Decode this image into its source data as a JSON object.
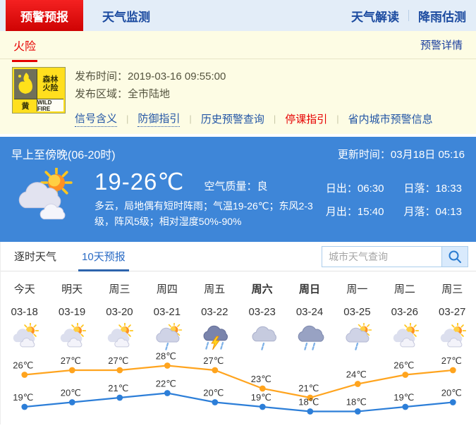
{
  "header": {
    "tabs": [
      {
        "label": "预警预报"
      },
      {
        "label": "天气监测"
      }
    ],
    "links": [
      {
        "label": "天气解读"
      },
      {
        "label": "降雨估测"
      }
    ]
  },
  "warning": {
    "category": "火险",
    "detail_link": "预警详情",
    "icon": {
      "line1": "森林",
      "line2": "火险",
      "level": "黄",
      "en": "WILD FIRE"
    },
    "publish_time_label": "发布时间：",
    "publish_time": "2019-03-16 09:55:00",
    "publish_area_label": "发布区域：",
    "publish_area": "全市陆地",
    "links": [
      {
        "label": "信号含义",
        "style": "dotted"
      },
      {
        "label": "防御指引",
        "style": "dotted"
      },
      {
        "label": "历史预警查询",
        "style": "plain"
      },
      {
        "label": "停课指引",
        "style": "red"
      },
      {
        "label": "省内城市预警信息",
        "style": "plain"
      }
    ]
  },
  "current": {
    "period": "早上至傍晚(06-20时)",
    "update_label": "更新时间：",
    "update_value": "03月18日 05:16",
    "temp_range": "19-26℃",
    "air_quality_label": "空气质量：",
    "air_quality_value": "良",
    "description": "多云，局地偶有短时阵雨；气温19-26℃；东风2-3级，阵风5级；相对湿度50%-90%",
    "icon": "partly-cloudy",
    "sun_moon": [
      {
        "label": "日出：",
        "value": "06:30"
      },
      {
        "label": "日落：",
        "value": "18:33"
      },
      {
        "label": "月出：",
        "value": "15:40"
      },
      {
        "label": "月落：",
        "value": "04:13"
      }
    ]
  },
  "forecast": {
    "tabs": [
      {
        "label": "逐时天气",
        "active": false
      },
      {
        "label": "10天预报",
        "active": true
      }
    ],
    "search": {
      "placeholder": "城市天气查询"
    },
    "days": [
      {
        "weekday": "今天",
        "date": "03-18",
        "icon": "partly-cloudy",
        "bold": false
      },
      {
        "weekday": "明天",
        "date": "03-19",
        "icon": "partly-cloudy",
        "bold": false
      },
      {
        "weekday": "周三",
        "date": "03-20",
        "icon": "partly-cloudy",
        "bold": false
      },
      {
        "weekday": "周四",
        "date": "03-21",
        "icon": "sun-shower",
        "bold": false
      },
      {
        "weekday": "周五",
        "date": "03-22",
        "icon": "thunderstorm",
        "bold": false
      },
      {
        "weekday": "周六",
        "date": "03-23",
        "icon": "light-rain",
        "bold": true
      },
      {
        "weekday": "周日",
        "date": "03-24",
        "icon": "rain",
        "bold": true
      },
      {
        "weekday": "周一",
        "date": "03-25",
        "icon": "sun-shower",
        "bold": false
      },
      {
        "weekday": "周二",
        "date": "03-26",
        "icon": "partly-cloudy",
        "bold": false
      },
      {
        "weekday": "周三",
        "date": "03-27",
        "icon": "partly-cloudy",
        "bold": false
      }
    ]
  },
  "chart_data": {
    "type": "line",
    "categories": [
      "03-18",
      "03-19",
      "03-20",
      "03-21",
      "03-22",
      "03-23",
      "03-24",
      "03-25",
      "03-26",
      "03-27"
    ],
    "series": [
      {
        "name": "high-temp",
        "color": "#ffa41e",
        "values": [
          26,
          27,
          27,
          28,
          27,
          23,
          21,
          24,
          26,
          27
        ]
      },
      {
        "name": "low-temp",
        "color": "#2c7ed8",
        "values": [
          19,
          20,
          21,
          22,
          20,
          19,
          18,
          18,
          19,
          20
        ]
      }
    ],
    "unit": "℃",
    "label_color": "#333333",
    "ylim": [
      17,
      29
    ],
    "grid": false,
    "legend": "none"
  },
  "colors": {
    "accent_red": "#e01212",
    "panel_yellow": "#fdfce4",
    "panel_blue": "#3e86d8",
    "link_blue": "#2255a5",
    "active_tab_blue": "#2a6bc5",
    "high_line": "#ffa41e",
    "low_line": "#2c7ed8"
  }
}
